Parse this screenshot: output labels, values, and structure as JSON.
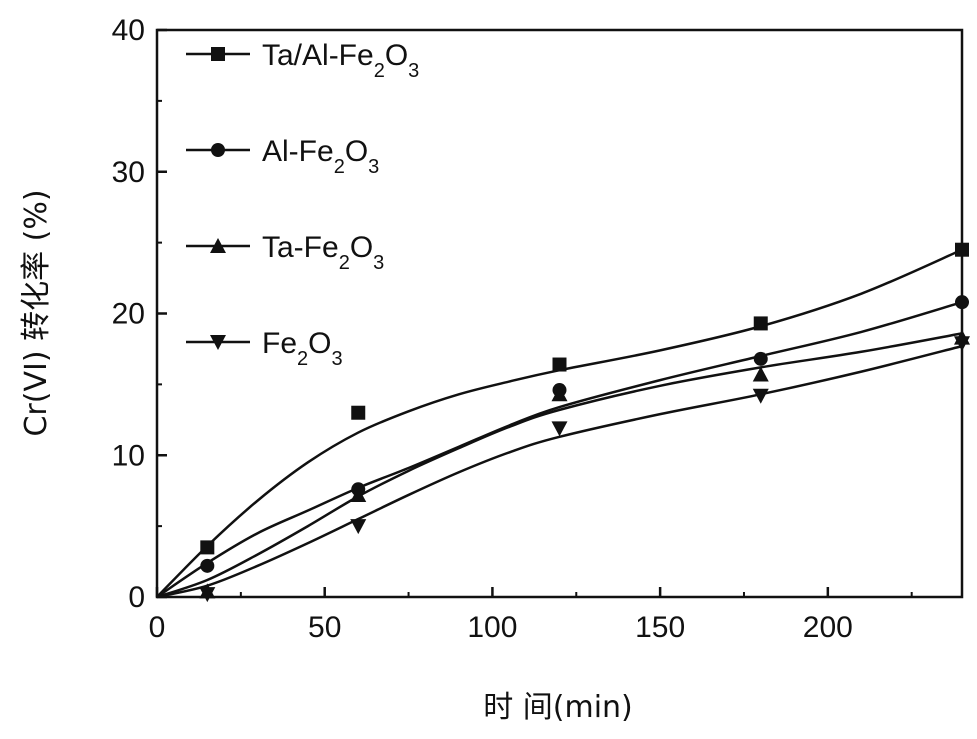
{
  "chart_data": {
    "type": "line",
    "xlabel": "时 间(min)",
    "ylabel": "Cr(VI) 转化率 (%)",
    "xlim": [
      0,
      240
    ],
    "ylim": [
      0,
      40
    ],
    "xticks": [
      0,
      50,
      100,
      150,
      200
    ],
    "yticks": [
      0,
      10,
      20,
      30,
      40
    ],
    "grid": false,
    "legend_position": "top-left",
    "series": [
      {
        "name": "Ta/Al-Fe2O3",
        "name_base": "Ta/Al-Fe",
        "name_sub1": "2",
        "name_mid": "O",
        "name_sub2": "3",
        "marker": "square",
        "points": [
          [
            0,
            0
          ],
          [
            15,
            3.5
          ],
          [
            60,
            13.0
          ],
          [
            120,
            16.4
          ],
          [
            180,
            19.3
          ],
          [
            240,
            24.5
          ]
        ],
        "curve": [
          [
            0,
            0
          ],
          [
            15,
            3.6
          ],
          [
            30,
            6.8
          ],
          [
            45,
            9.5
          ],
          [
            60,
            11.6
          ],
          [
            75,
            13.1
          ],
          [
            90,
            14.3
          ],
          [
            105,
            15.2
          ],
          [
            120,
            16.0
          ],
          [
            150,
            17.4
          ],
          [
            180,
            19.1
          ],
          [
            210,
            21.4
          ],
          [
            240,
            24.5
          ]
        ]
      },
      {
        "name": "Al-Fe2O3",
        "name_base": "Al-Fe",
        "name_sub1": "2",
        "name_mid": "O",
        "name_sub2": "3",
        "marker": "circle",
        "points": [
          [
            0,
            0
          ],
          [
            15,
            2.2
          ],
          [
            60,
            7.6
          ],
          [
            120,
            14.6
          ],
          [
            180,
            16.8
          ],
          [
            240,
            20.8
          ]
        ],
        "curve": [
          [
            0,
            0
          ],
          [
            15,
            2.4
          ],
          [
            30,
            4.5
          ],
          [
            45,
            6.1
          ],
          [
            60,
            7.7
          ],
          [
            75,
            9.1
          ],
          [
            90,
            10.6
          ],
          [
            105,
            12.1
          ],
          [
            120,
            13.4
          ],
          [
            150,
            15.3
          ],
          [
            180,
            17.0
          ],
          [
            210,
            18.7
          ],
          [
            240,
            20.8
          ]
        ]
      },
      {
        "name": "Ta-Fe2O3",
        "name_base": "Ta-Fe",
        "name_sub1": "2",
        "name_mid": "O",
        "name_sub2": "3",
        "marker": "triangle-up",
        "points": [
          [
            0,
            0
          ],
          [
            15,
            0.4
          ],
          [
            60,
            7.2
          ],
          [
            120,
            14.3
          ],
          [
            180,
            15.7
          ],
          [
            240,
            18.3
          ]
        ],
        "curve": [
          [
            0,
            0
          ],
          [
            15,
            1.2
          ],
          [
            30,
            3.0
          ],
          [
            45,
            5.0
          ],
          [
            60,
            7.1
          ],
          [
            75,
            8.9
          ],
          [
            90,
            10.5
          ],
          [
            105,
            12.0
          ],
          [
            120,
            13.2
          ],
          [
            150,
            14.9
          ],
          [
            180,
            16.2
          ],
          [
            210,
            17.3
          ],
          [
            240,
            18.6
          ]
        ]
      },
      {
        "name": "Fe2O3",
        "name_base": "Fe",
        "name_sub1": "2",
        "name_mid": "O",
        "name_sub2": "3",
        "marker": "triangle-down",
        "points": [
          [
            0,
            0
          ],
          [
            15,
            0.2
          ],
          [
            60,
            5.0
          ],
          [
            120,
            11.9
          ],
          [
            180,
            14.2
          ],
          [
            240,
            17.9
          ]
        ],
        "curve": [
          [
            0,
            0
          ],
          [
            15,
            0.8
          ],
          [
            30,
            2.2
          ],
          [
            45,
            3.8
          ],
          [
            60,
            5.5
          ],
          [
            75,
            7.2
          ],
          [
            90,
            8.8
          ],
          [
            105,
            10.2
          ],
          [
            120,
            11.3
          ],
          [
            150,
            12.9
          ],
          [
            180,
            14.3
          ],
          [
            210,
            15.9
          ],
          [
            240,
            17.7
          ]
        ]
      }
    ]
  }
}
